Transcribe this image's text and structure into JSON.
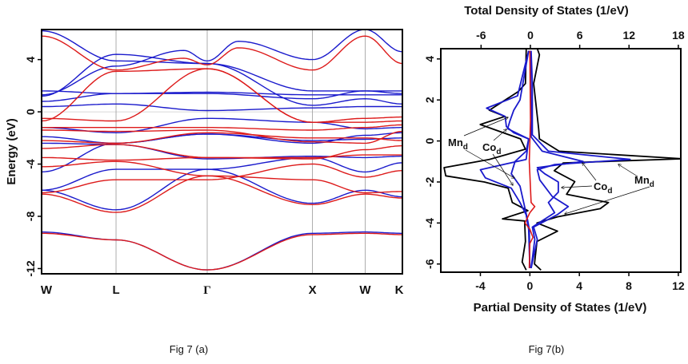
{
  "colors": {
    "spin_up": "#1a1acc",
    "spin_down": "#dd1a1a",
    "total": "#000000",
    "grid": "#999999"
  },
  "captions": {
    "a": "Fig 7 (a)",
    "b": "Fig 7(b)"
  },
  "chart_data": [
    {
      "type": "line",
      "title": "",
      "ylabel": "Energy (eV)",
      "ylim": [
        -12.4,
        6.3
      ],
      "yticks": [
        4,
        0,
        -4,
        -8,
        -12
      ],
      "kpoints": [
        {
          "label": "W",
          "k": 0
        },
        {
          "label": "L",
          "k": 0.707
        },
        {
          "label": "Γ",
          "k": 1.573
        },
        {
          "label": "X",
          "k": 2.573
        },
        {
          "label": "W",
          "k": 3.073
        },
        {
          "label": "K",
          "k": 3.427
        }
      ],
      "series": [
        {
          "color": "blue",
          "bands": [
            {
              "E": [
                -9.2,
                -9.8,
                -12.1,
                -9.3,
                -9.2,
                -9.3
              ]
            },
            {
              "E": [
                -6.0,
                -7.5,
                -4.4,
                -7.0,
                -6.0,
                -6.5
              ]
            },
            {
              "E": [
                -6.0,
                -4.4,
                -4.4,
                -3.5,
                -4.6,
                -3.9
              ]
            },
            {
              "E": [
                -4.6,
                -2.4,
                -1.7,
                -2.4,
                -1.8,
                -1.6
              ]
            },
            {
              "E": [
                -2.4,
                -2.5,
                -3.6,
                -3.4,
                -3.5,
                -3.4
              ]
            },
            {
              "E": [
                -1.2,
                -1.6,
                -0.5,
                -0.8,
                -1.3,
                -1.2
              ]
            },
            {
              "E": [
                -1.9,
                -2.4,
                -1.7,
                -2.2,
                -2.1,
                -2.0
              ]
            },
            {
              "E": [
                0.4,
                0.6,
                0.1,
                0.3,
                0.4,
                0.4
              ]
            },
            {
              "E": [
                0.8,
                1.4,
                1.5,
                1.3,
                1.3,
                1.3
              ]
            },
            {
              "E": [
                1.6,
                1.4,
                1.4,
                1.0,
                1.6,
                1.6
              ]
            },
            {
              "E": [
                1.2,
                4.4,
                3.7,
                0.5,
                1.0,
                0.6
              ]
            },
            {
              "E": [
                6.2,
                3.9,
                3.7,
                1.6,
                1.6,
                1.4
              ]
            },
            {
              "E": [
                1.3,
                3.5,
                3.9,
                4.0,
                6.3,
                4.6
              ],
              "extra": [
                [
                  1.35,
                  4.7
                ],
                [
                  1.87,
                  5.4
                ]
              ]
            }
          ]
        },
        {
          "color": "red",
          "bands": [
            {
              "E": [
                -9.3,
                -9.8,
                -12.1,
                -9.4,
                -9.3,
                -9.4
              ]
            },
            {
              "E": [
                -6.3,
                -7.7,
                -4.9,
                -7.1,
                -6.3,
                -6.6
              ]
            },
            {
              "E": [
                -6.2,
                -5.2,
                -5.2,
                -4.0,
                -5.0,
                -4.5
              ]
            },
            {
              "E": [
                -4.2,
                -3.8,
                -4.9,
                -5.2,
                -6.2,
                -6.1
              ]
            },
            {
              "E": [
                -3.5,
                -3.7,
                -3.5,
                -3.6,
                -2.9,
                -2.6
              ]
            },
            {
              "E": [
                -2.8,
                -2.5,
                -3.5,
                -3.5,
                -3.3,
                -3.3
              ]
            },
            {
              "E": [
                -2.2,
                -2.4,
                -1.6,
                -2.0,
                -2.0,
                -2.2
              ]
            },
            {
              "E": [
                -1.4,
                -1.5,
                -1.4,
                -2.3,
                -2.4,
                -1.5
              ]
            },
            {
              "E": [
                -1.2,
                -1.2,
                -1.2,
                -1.4,
                -1.2,
                -1.0
              ]
            },
            {
              "E": [
                -0.5,
                -0.7,
                3.3,
                -0.8,
                -0.8,
                -0.7
              ]
            },
            {
              "E": [
                -0.7,
                3.1,
                3.3,
                -0.8,
                -0.5,
                -0.4
              ]
            },
            {
              "E": [
                5.8,
                3.2,
                3.6,
                3.2,
                5.8,
                3.7
              ],
              "extra": [
                [
                  1.35,
                  4.1
                ],
                [
                  1.87,
                  4.9
                ]
              ]
            }
          ]
        }
      ]
    },
    {
      "type": "line",
      "title": "",
      "top_xlabel": "Total Density of States (1/eV)",
      "bottom_xlabel": "Partial Density of States (1/eV)",
      "ylim": [
        -6.4,
        4.5
      ],
      "yticks": [
        4,
        2,
        0,
        -2,
        -4,
        -6
      ],
      "top_xlim": [
        -10.9,
        18.3
      ],
      "top_xticks": [
        -6,
        0,
        6,
        12,
        18
      ],
      "bottom_xlim": [
        -7.2,
        12.2
      ],
      "bottom_xticks": [
        -4,
        0,
        4,
        8,
        12
      ],
      "series": [
        {
          "axis": "top",
          "color": "black",
          "points": [
            [
              4.55,
              0.8
            ],
            [
              4.2,
              1.1
            ],
            [
              2.8,
              0.4
            ],
            [
              0.6,
              1.0
            ],
            [
              0.1,
              1.1
            ],
            [
              -0.5,
              3.5
            ],
            [
              -0.87,
              18.5
            ],
            [
              -1.07,
              4.0
            ],
            [
              -1.45,
              2.9
            ],
            [
              -1.98,
              5.4
            ],
            [
              -2.6,
              4.4
            ],
            [
              -3.0,
              9.5
            ],
            [
              -3.3,
              8.5
            ],
            [
              -3.7,
              3.3
            ],
            [
              -4.0,
              0.8
            ],
            [
              -4.4,
              3.3
            ],
            [
              -4.9,
              0.8
            ],
            [
              -6.0,
              0.5
            ],
            [
              -6.3,
              1.3
            ]
          ]
        },
        {
          "axis": "top",
          "color": "black",
          "points": [
            [
              4.5,
              -0.5
            ],
            [
              2.8,
              -0.6
            ],
            [
              2.4,
              -1.5
            ],
            [
              1.5,
              -5.0
            ],
            [
              1.2,
              -3.1
            ],
            [
              0.8,
              -6.1
            ],
            [
              0.1,
              -1.2
            ],
            [
              -0.4,
              -0.6
            ],
            [
              -0.9,
              -5.0
            ],
            [
              -1.3,
              -10.5
            ],
            [
              -1.7,
              -10.3
            ],
            [
              -2.0,
              -5.6
            ],
            [
              -2.3,
              -2.7
            ],
            [
              -3.0,
              -2.2
            ],
            [
              -3.4,
              -0.3
            ],
            [
              -3.8,
              -3.4
            ],
            [
              -3.9,
              -0.7
            ],
            [
              -4.9,
              -0.6
            ],
            [
              -5.9,
              -1.0
            ],
            [
              -6.3,
              -0.5
            ]
          ]
        },
        {
          "axis": "bottom",
          "name": "Mn_d",
          "color": "blue",
          "points": [
            [
              4.4,
              0.1
            ],
            [
              2.8,
              0.2
            ],
            [
              0.3,
              0.2
            ],
            [
              -0.5,
              1.5
            ],
            [
              -0.9,
              8.1
            ],
            [
              -1.15,
              2.0
            ],
            [
              -1.4,
              0.6
            ],
            [
              -1.9,
              0.8
            ],
            [
              -2.7,
              1.8
            ],
            [
              -3.2,
              3.1
            ],
            [
              -3.6,
              2.2
            ],
            [
              -4.2,
              0.3
            ],
            [
              -4.8,
              0.6
            ],
            [
              -6.2,
              0.1
            ]
          ]
        },
        {
          "axis": "bottom",
          "name": "Co_d",
          "color": "blue",
          "points": [
            [
              4.4,
              0.05
            ],
            [
              0.2,
              0.1
            ],
            [
              -0.5,
              1.0
            ],
            [
              -1.0,
              4.3
            ],
            [
              -1.3,
              0.6
            ],
            [
              -1.6,
              1.2
            ],
            [
              -2.0,
              2.3
            ],
            [
              -2.5,
              2.3
            ],
            [
              -3.0,
              1.5
            ],
            [
              -3.5,
              2.0
            ],
            [
              -4.2,
              0.2
            ],
            [
              -4.8,
              0.4
            ],
            [
              -6.2,
              0.1
            ]
          ]
        },
        {
          "axis": "bottom",
          "name": "Mn_d",
          "color": "blue",
          "points": [
            [
              4.4,
              -0.1
            ],
            [
              2.2,
              -1.0
            ],
            [
              1.6,
              -3.5
            ],
            [
              1.2,
              -2.0
            ],
            [
              0.7,
              -1.9
            ],
            [
              0.4,
              -1.3
            ],
            [
              0.1,
              -0.1
            ],
            [
              -0.9,
              -0.3
            ],
            [
              -1.4,
              -4.0
            ],
            [
              -1.8,
              -3.6
            ],
            [
              -2.3,
              -1.5
            ],
            [
              -3.0,
              -0.8
            ],
            [
              -3.6,
              -0.3
            ],
            [
              -4.3,
              -0.1
            ],
            [
              -6.2,
              0
            ]
          ]
        },
        {
          "axis": "bottom",
          "name": "Co_d",
          "color": "blue",
          "points": [
            [
              4.4,
              -0.1
            ],
            [
              2.0,
              -0.8
            ],
            [
              1.5,
              -1.3
            ],
            [
              1.0,
              -1.6
            ],
            [
              0.6,
              -1.8
            ],
            [
              0.1,
              -0.1
            ],
            [
              -0.5,
              -0.3
            ],
            [
              -1.0,
              -1.2
            ],
            [
              -1.6,
              -1.5
            ],
            [
              -2.2,
              -0.8
            ],
            [
              -3.0,
              -0.5
            ],
            [
              -3.8,
              -0.2
            ],
            [
              -4.3,
              -0.05
            ],
            [
              -6.2,
              0
            ]
          ]
        },
        {
          "axis": "bottom",
          "color": "red",
          "points": [
            [
              4.4,
              0.0
            ],
            [
              1.0,
              0.05
            ],
            [
              -1.0,
              -0.05
            ],
            [
              -3.0,
              0.1
            ],
            [
              -3.2,
              0.4
            ],
            [
              -3.5,
              0.0
            ],
            [
              -4.0,
              -0.4
            ],
            [
              -4.3,
              0.0
            ],
            [
              -4.7,
              0.25
            ],
            [
              -5.0,
              0.0
            ],
            [
              -6.2,
              -0.05
            ]
          ]
        }
      ],
      "annotations": [
        {
          "text": "Mn",
          "sub": "d"
        },
        {
          "text": "Co",
          "sub": "d"
        },
        {
          "text": "Co",
          "sub": "d"
        },
        {
          "text": "Mn",
          "sub": "d"
        }
      ]
    }
  ]
}
